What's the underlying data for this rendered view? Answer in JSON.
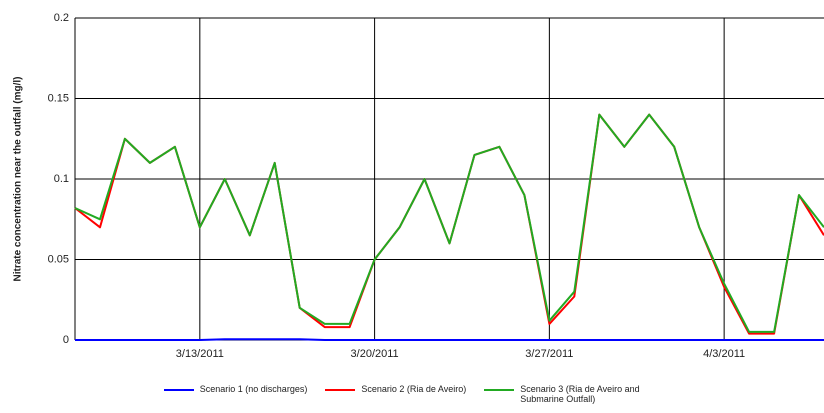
{
  "chart_data": {
    "type": "line",
    "ylabel": "Nitrate concentration near the outfall (mg/l)",
    "x": [
      "3/8/2011",
      "3/9/2011",
      "3/10/2011",
      "3/11/2011",
      "3/12/2011",
      "3/13/2011",
      "3/14/2011",
      "3/15/2011",
      "3/16/2011",
      "3/17/2011",
      "3/18/2011",
      "3/19/2011",
      "3/20/2011",
      "3/21/2011",
      "3/22/2011",
      "3/23/2011",
      "3/24/2011",
      "3/25/2011",
      "3/26/2011",
      "3/27/2011",
      "3/28/2011",
      "3/29/2011",
      "3/30/2011",
      "3/31/2011",
      "4/1/2011",
      "4/2/2011",
      "4/3/2011",
      "4/4/2011",
      "4/5/2011",
      "4/6/2011",
      "4/7/2011"
    ],
    "series": [
      {
        "name": "Scenario 1 (no discharges)",
        "color": "#0000ff",
        "values": [
          0,
          0,
          0,
          0,
          0,
          0,
          0.0005,
          0.0005,
          0.0005,
          0.0005,
          0,
          0,
          0,
          0,
          0,
          0,
          0,
          0,
          0,
          0,
          0,
          0,
          0,
          0,
          0,
          0,
          0,
          0,
          0,
          0,
          0
        ]
      },
      {
        "name": "Scenario 2 (Ria de Aveiro)",
        "color": "#ff0000",
        "values": [
          0.082,
          0.07,
          0.125,
          0.11,
          0.12,
          0.07,
          0.1,
          0.065,
          0.11,
          0.02,
          0.008,
          0.008,
          0.05,
          0.07,
          0.1,
          0.06,
          0.115,
          0.12,
          0.09,
          0.01,
          0.027,
          0.14,
          0.12,
          0.14,
          0.12,
          0.07,
          0.033,
          0.004,
          0.004,
          0.09,
          0.065
        ]
      },
      {
        "name": "Scenario 3 (Ria de Aveiro and Submarine Outfall)",
        "color": "#22aa22",
        "values": [
          0.082,
          0.075,
          0.125,
          0.11,
          0.12,
          0.07,
          0.1,
          0.065,
          0.11,
          0.02,
          0.01,
          0.01,
          0.05,
          0.07,
          0.1,
          0.06,
          0.115,
          0.12,
          0.09,
          0.012,
          0.03,
          0.14,
          0.12,
          0.14,
          0.12,
          0.07,
          0.035,
          0.005,
          0.005,
          0.09,
          0.07
        ]
      }
    ],
    "xlim": [
      "3/8/2011",
      "4/7/2011"
    ],
    "xticks": [
      "3/13/2011",
      "3/20/2011",
      "3/27/2011",
      "4/3/2011"
    ],
    "ylim": [
      0,
      0.2
    ],
    "yticks": [
      0,
      0.05,
      0.1,
      0.15,
      0.2
    ],
    "grid": true,
    "legend": "bottom"
  }
}
